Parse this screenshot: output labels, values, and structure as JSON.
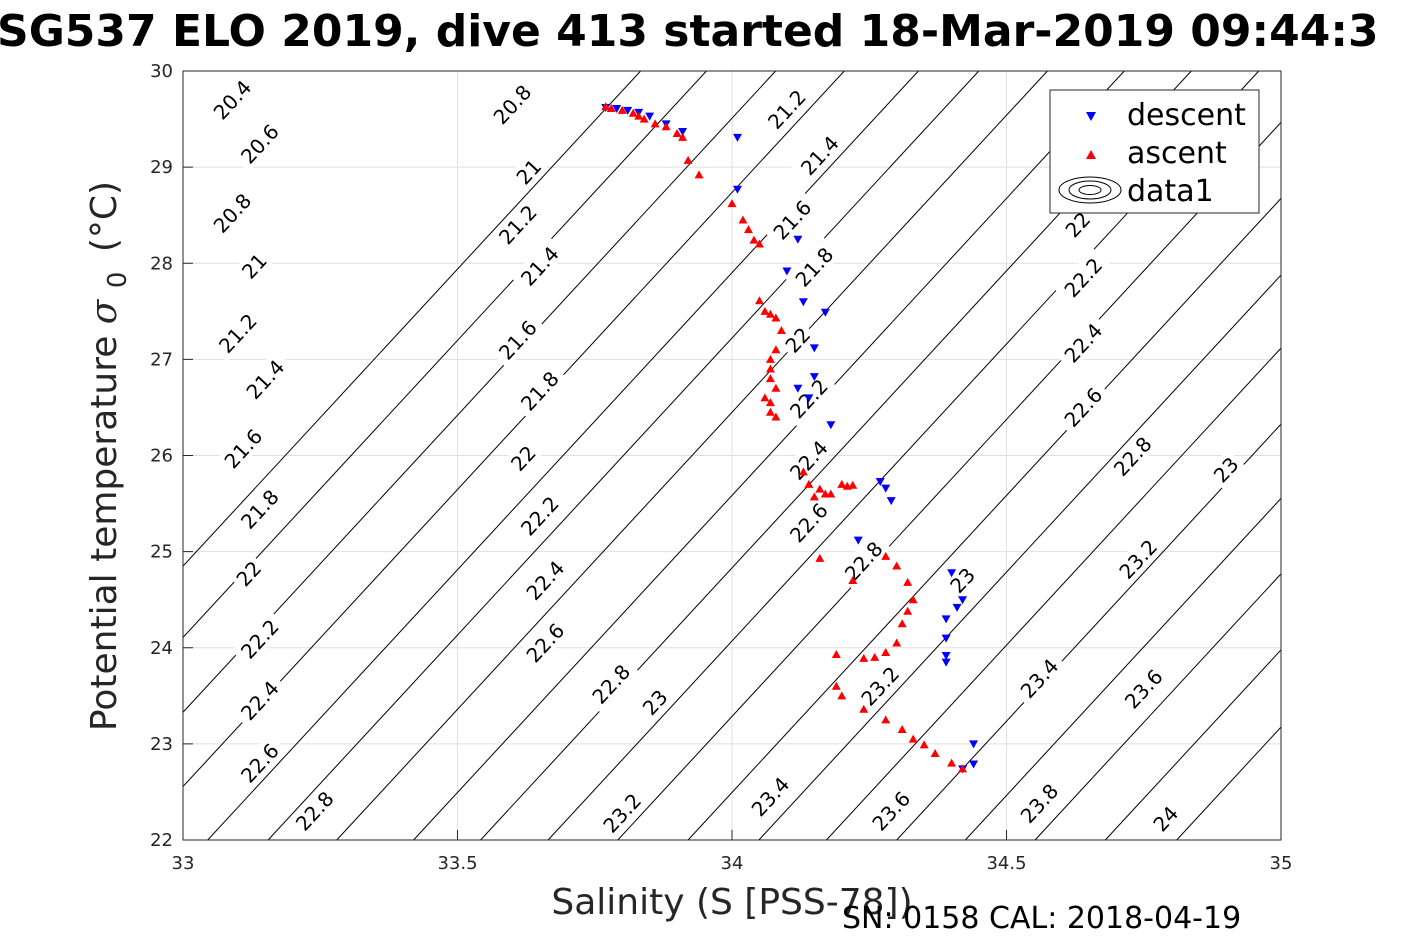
{
  "chart_data": {
    "type": "scatter",
    "title": "SG537 ELO 2019, dive 413 started 18-Mar-2019 09:44:3",
    "xlabel": "Salinity (S [PSS-78])",
    "ylabel": "Potential temperature",
    "ylabel_symbol": "σ",
    "ylabel_sub": "0",
    "ylabel_unit": "(°C)",
    "footer": "SN: 0158  CAL: 2018-04-19",
    "xlim": [
      33,
      35
    ],
    "ylim": [
      22,
      30
    ],
    "xticks": [
      "33",
      "33.5",
      "34",
      "34.5",
      "35"
    ],
    "yticks": [
      "22",
      "23",
      "24",
      "25",
      "26",
      "27",
      "28",
      "29",
      "30"
    ],
    "grid": true,
    "legend_position": "top-right",
    "legend": [
      "descent",
      "ascent",
      "data1"
    ],
    "contours": {
      "slope_degC_per_psu": 6.18,
      "levels": [
        {
          "value": 20.4,
          "label": "20.4",
          "s0": 32.539
        },
        {
          "value": 20.6,
          "label": "20.6",
          "s0": 32.659
        },
        {
          "value": 20.8,
          "label": "20.8",
          "s0": 32.785
        },
        {
          "value": 21.0,
          "label": "21",
          "s0": 32.91
        },
        {
          "value": 21.2,
          "label": "21.2",
          "s0": 33.045
        },
        {
          "value": 21.4,
          "label": "21.4",
          "s0": 33.155
        },
        {
          "value": 21.6,
          "label": "21.6",
          "s0": 33.28
        },
        {
          "value": 21.8,
          "label": "21.8",
          "s0": 33.42
        },
        {
          "value": 22.0,
          "label": "22",
          "s0": 33.542
        },
        {
          "value": 22.2,
          "label": "22.2",
          "s0": 33.665
        },
        {
          "value": 22.4,
          "label": "22.4",
          "s0": 33.792
        },
        {
          "value": 22.6,
          "label": "22.6",
          "s0": 33.92
        },
        {
          "value": 22.8,
          "label": "22.8",
          "s0": 34.049
        },
        {
          "value": 23.0,
          "label": "23",
          "s0": 34.172
        },
        {
          "value": 23.2,
          "label": "23.2",
          "s0": 34.3
        },
        {
          "value": 23.4,
          "label": "23.4",
          "s0": 34.425
        },
        {
          "value": 23.6,
          "label": "23.6",
          "s0": 34.552
        },
        {
          "value": 23.8,
          "label": "23.8",
          "s0": 34.68
        },
        {
          "value": 24.0,
          "label": "24",
          "s0": 34.81
        }
      ],
      "label_positions": [
        {
          "text": "20.4",
          "x": 33.09,
          "y": 29.7
        },
        {
          "text": "20.6",
          "x": 33.14,
          "y": 29.24
        },
        {
          "text": "20.8",
          "x": 33.09,
          "y": 28.52
        },
        {
          "text": "21",
          "x": 33.13,
          "y": 27.97
        },
        {
          "text": "21.2",
          "x": 33.1,
          "y": 27.27
        },
        {
          "text": "21.4",
          "x": 33.15,
          "y": 26.79
        },
        {
          "text": "21.6",
          "x": 33.11,
          "y": 26.07
        },
        {
          "text": "21.8",
          "x": 33.14,
          "y": 25.44
        },
        {
          "text": "22",
          "x": 33.12,
          "y": 24.77
        },
        {
          "text": "22.2",
          "x": 33.14,
          "y": 24.09
        },
        {
          "text": "22.4",
          "x": 33.14,
          "y": 23.45
        },
        {
          "text": "22.6",
          "x": 33.14,
          "y": 22.8
        },
        {
          "text": "22.8",
          "x": 33.24,
          "y": 22.3
        },
        {
          "text": "20.8",
          "x": 33.6,
          "y": 29.65
        },
        {
          "text": "21",
          "x": 33.63,
          "y": 28.95
        },
        {
          "text": "21.2",
          "x": 33.61,
          "y": 28.4
        },
        {
          "text": "21.4",
          "x": 33.65,
          "y": 27.97
        },
        {
          "text": "21.6",
          "x": 33.61,
          "y": 27.2
        },
        {
          "text": "21.8",
          "x": 33.65,
          "y": 26.67
        },
        {
          "text": "22",
          "x": 33.62,
          "y": 25.97
        },
        {
          "text": "22.2",
          "x": 33.65,
          "y": 25.37
        },
        {
          "text": "22.4",
          "x": 33.66,
          "y": 24.7
        },
        {
          "text": "22.6",
          "x": 33.66,
          "y": 24.05
        },
        {
          "text": "22.8",
          "x": 33.78,
          "y": 23.62
        },
        {
          "text": "23",
          "x": 33.86,
          "y": 23.43
        },
        {
          "text": "23.2",
          "x": 33.8,
          "y": 22.28
        },
        {
          "text": "21.2",
          "x": 34.1,
          "y": 29.6
        },
        {
          "text": "21.4",
          "x": 34.16,
          "y": 29.12
        },
        {
          "text": "21.6",
          "x": 34.11,
          "y": 28.45
        },
        {
          "text": "21.8",
          "x": 34.15,
          "y": 27.96
        },
        {
          "text": "22",
          "x": 34.12,
          "y": 27.2
        },
        {
          "text": "22.2",
          "x": 34.14,
          "y": 26.59
        },
        {
          "text": "22.4",
          "x": 34.14,
          "y": 25.95
        },
        {
          "text": "22.6",
          "x": 34.14,
          "y": 25.3
        },
        {
          "text": "22.8",
          "x": 34.24,
          "y": 24.9
        },
        {
          "text": "23",
          "x": 34.42,
          "y": 24.7
        },
        {
          "text": "23.2",
          "x": 34.27,
          "y": 23.6
        },
        {
          "text": "23.4",
          "x": 34.07,
          "y": 22.45
        },
        {
          "text": "23.6",
          "x": 34.29,
          "y": 22.3
        },
        {
          "text": "22",
          "x": 34.63,
          "y": 28.4
        },
        {
          "text": "22.2",
          "x": 34.64,
          "y": 27.85
        },
        {
          "text": "22.4",
          "x": 34.64,
          "y": 27.17
        },
        {
          "text": "22.6",
          "x": 34.64,
          "y": 26.5
        },
        {
          "text": "22.8",
          "x": 34.73,
          "y": 25.99
        },
        {
          "text": "23",
          "x": 34.9,
          "y": 25.85
        },
        {
          "text": "23.2",
          "x": 34.74,
          "y": 24.92
        },
        {
          "text": "23.4",
          "x": 34.56,
          "y": 23.68
        },
        {
          "text": "23.6",
          "x": 34.75,
          "y": 23.57
        },
        {
          "text": "23.8",
          "x": 34.56,
          "y": 22.38
        },
        {
          "text": "24",
          "x": 34.79,
          "y": 22.22
        }
      ]
    },
    "series": [
      {
        "name": "descent",
        "color": "#0000ff",
        "marker": "triangle-down",
        "points": [
          [
            33.77,
            29.62
          ],
          [
            33.79,
            29.61
          ],
          [
            33.81,
            29.59
          ],
          [
            33.83,
            29.57
          ],
          [
            33.85,
            29.53
          ],
          [
            33.88,
            29.45
          ],
          [
            33.91,
            29.37
          ],
          [
            34.01,
            29.31
          ],
          [
            34.01,
            28.77
          ],
          [
            34.12,
            28.25
          ],
          [
            34.1,
            27.92
          ],
          [
            34.13,
            27.6
          ],
          [
            34.17,
            27.49
          ],
          [
            34.15,
            27.12
          ],
          [
            34.15,
            26.82
          ],
          [
            34.12,
            26.7
          ],
          [
            34.14,
            26.6
          ],
          [
            34.18,
            26.32
          ],
          [
            34.27,
            25.73
          ],
          [
            34.28,
            25.66
          ],
          [
            34.29,
            25.53
          ],
          [
            34.23,
            25.12
          ],
          [
            34.4,
            24.78
          ],
          [
            34.42,
            24.5
          ],
          [
            34.41,
            24.42
          ],
          [
            34.39,
            24.3
          ],
          [
            34.39,
            24.1
          ],
          [
            34.39,
            23.92
          ],
          [
            34.39,
            23.85
          ],
          [
            34.44,
            23.0
          ],
          [
            34.44,
            22.79
          ],
          [
            34.42,
            22.74
          ]
        ]
      },
      {
        "name": "ascent",
        "color": "#ff0000",
        "marker": "triangle-up",
        "points": [
          [
            33.77,
            29.63
          ],
          [
            33.78,
            29.61
          ],
          [
            33.8,
            29.59
          ],
          [
            33.82,
            29.56
          ],
          [
            33.83,
            29.53
          ],
          [
            33.84,
            29.5
          ],
          [
            33.86,
            29.45
          ],
          [
            33.88,
            29.42
          ],
          [
            33.9,
            29.35
          ],
          [
            33.91,
            29.31
          ],
          [
            33.92,
            29.07
          ],
          [
            33.94,
            28.92
          ],
          [
            34.0,
            28.62
          ],
          [
            34.02,
            28.45
          ],
          [
            34.03,
            28.35
          ],
          [
            34.04,
            28.24
          ],
          [
            34.05,
            28.2
          ],
          [
            34.05,
            27.61
          ],
          [
            34.06,
            27.5
          ],
          [
            34.07,
            27.47
          ],
          [
            34.08,
            27.43
          ],
          [
            34.09,
            27.3
          ],
          [
            34.08,
            27.1
          ],
          [
            34.07,
            27.0
          ],
          [
            34.07,
            26.9
          ],
          [
            34.07,
            26.8
          ],
          [
            34.08,
            26.7
          ],
          [
            34.06,
            26.6
          ],
          [
            34.07,
            26.55
          ],
          [
            34.07,
            26.45
          ],
          [
            34.08,
            26.4
          ],
          [
            34.13,
            25.83
          ],
          [
            34.14,
            25.7
          ],
          [
            34.16,
            25.65
          ],
          [
            34.18,
            25.6
          ],
          [
            34.2,
            25.7
          ],
          [
            34.21,
            25.68
          ],
          [
            34.22,
            25.69
          ],
          [
            34.17,
            25.6
          ],
          [
            34.15,
            25.57
          ],
          [
            34.16,
            24.93
          ],
          [
            34.22,
            24.7
          ],
          [
            34.28,
            24.95
          ],
          [
            34.3,
            24.85
          ],
          [
            34.32,
            24.68
          ],
          [
            34.33,
            24.5
          ],
          [
            34.32,
            24.38
          ],
          [
            34.31,
            24.25
          ],
          [
            34.3,
            24.05
          ],
          [
            34.28,
            23.95
          ],
          [
            34.26,
            23.9
          ],
          [
            34.24,
            23.89
          ],
          [
            34.19,
            23.93
          ],
          [
            34.19,
            23.6
          ],
          [
            34.2,
            23.5
          ],
          [
            34.24,
            23.36
          ],
          [
            34.28,
            23.25
          ],
          [
            34.31,
            23.15
          ],
          [
            34.33,
            23.05
          ],
          [
            34.35,
            22.99
          ],
          [
            34.37,
            22.9
          ],
          [
            34.4,
            22.8
          ],
          [
            34.42,
            22.74
          ]
        ]
      }
    ]
  }
}
